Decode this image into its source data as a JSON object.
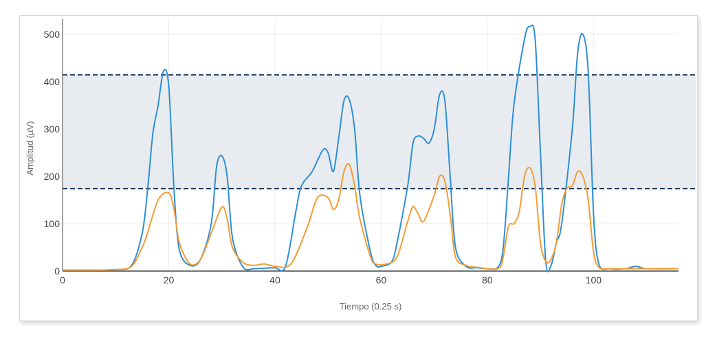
{
  "chart_data": {
    "type": "line",
    "title": "",
    "xlabel": "Tiempo (0.25 s)",
    "ylabel": "Amplitud (µV)",
    "xlim": [
      0,
      116
    ],
    "ylim": [
      0,
      520
    ],
    "x_ticks": [
      0,
      20,
      40,
      60,
      80,
      100
    ],
    "y_ticks": [
      0,
      100,
      200,
      300,
      400,
      500
    ],
    "grid": true,
    "legend": "none",
    "band": {
      "lower": 174,
      "upper": 414,
      "fill": "#e6eaee",
      "line_color": "#1b3a5c"
    },
    "series": [
      {
        "color": "#2d8fd5",
        "points": [
          [
            0,
            2
          ],
          [
            5,
            2
          ],
          [
            10,
            3
          ],
          [
            13,
            12
          ],
          [
            15,
            80
          ],
          [
            16,
            170
          ],
          [
            17,
            290
          ],
          [
            18,
            350
          ],
          [
            19,
            422
          ],
          [
            20,
            390
          ],
          [
            21,
            170
          ],
          [
            22,
            45
          ],
          [
            24,
            12
          ],
          [
            26,
            25
          ],
          [
            28,
            100
          ],
          [
            29,
            220
          ],
          [
            30,
            243
          ],
          [
            31,
            200
          ],
          [
            32,
            70
          ],
          [
            34,
            8
          ],
          [
            36,
            5
          ],
          [
            38,
            6
          ],
          [
            40,
            7
          ],
          [
            42,
            10
          ],
          [
            44,
            130
          ],
          [
            45,
            180
          ],
          [
            47,
            210
          ],
          [
            49,
            255
          ],
          [
            50,
            250
          ],
          [
            51,
            210
          ],
          [
            52,
            280
          ],
          [
            53,
            360
          ],
          [
            54,
            362
          ],
          [
            55,
            300
          ],
          [
            56,
            160
          ],
          [
            58,
            40
          ],
          [
            59,
            12
          ],
          [
            60,
            10
          ],
          [
            62,
            20
          ],
          [
            63,
            60
          ],
          [
            65,
            180
          ],
          [
            66,
            270
          ],
          [
            67,
            285
          ],
          [
            68,
            280
          ],
          [
            69,
            270
          ],
          [
            70,
            300
          ],
          [
            71,
            372
          ],
          [
            72,
            360
          ],
          [
            73,
            200
          ],
          [
            74,
            50
          ],
          [
            76,
            10
          ],
          [
            78,
            7
          ],
          [
            80,
            5
          ],
          [
            82,
            8
          ],
          [
            83,
            50
          ],
          [
            84,
            200
          ],
          [
            85,
            350
          ],
          [
            87,
            490
          ],
          [
            88,
            516
          ],
          [
            89,
            490
          ],
          [
            90,
            250
          ],
          [
            91,
            20
          ],
          [
            92,
            12
          ],
          [
            93,
            60
          ],
          [
            94,
            100
          ],
          [
            96,
            300
          ],
          [
            97,
            460
          ],
          [
            98,
            500
          ],
          [
            99,
            420
          ],
          [
            100,
            120
          ],
          [
            101,
            15
          ],
          [
            103,
            5
          ],
          [
            106,
            5
          ],
          [
            108,
            10
          ],
          [
            110,
            5
          ],
          [
            116,
            5
          ]
        ]
      },
      {
        "color": "#f39c35",
        "points": [
          [
            0,
            2
          ],
          [
            5,
            2
          ],
          [
            10,
            3
          ],
          [
            13,
            10
          ],
          [
            15,
            50
          ],
          [
            16,
            80
          ],
          [
            18,
            150
          ],
          [
            20,
            165
          ],
          [
            21,
            130
          ],
          [
            22,
            60
          ],
          [
            24,
            15
          ],
          [
            26,
            25
          ],
          [
            28,
            80
          ],
          [
            30,
            135
          ],
          [
            31,
            110
          ],
          [
            32,
            50
          ],
          [
            34,
            18
          ],
          [
            36,
            12
          ],
          [
            38,
            15
          ],
          [
            40,
            10
          ],
          [
            43,
            15
          ],
          [
            46,
            90
          ],
          [
            48,
            155
          ],
          [
            50,
            155
          ],
          [
            51,
            130
          ],
          [
            52,
            150
          ],
          [
            53,
            210
          ],
          [
            54,
            225
          ],
          [
            55,
            180
          ],
          [
            56,
            110
          ],
          [
            58,
            30
          ],
          [
            59,
            15
          ],
          [
            61,
            15
          ],
          [
            63,
            30
          ],
          [
            65,
            105
          ],
          [
            66,
            136
          ],
          [
            67,
            120
          ],
          [
            68,
            105
          ],
          [
            70,
            160
          ],
          [
            71,
            200
          ],
          [
            72,
            190
          ],
          [
            73,
            120
          ],
          [
            74,
            30
          ],
          [
            76,
            12
          ],
          [
            78,
            8
          ],
          [
            82,
            5
          ],
          [
            83,
            30
          ],
          [
            84,
            95
          ],
          [
            85,
            100
          ],
          [
            86,
            125
          ],
          [
            87,
            200
          ],
          [
            88,
            218
          ],
          [
            89,
            180
          ],
          [
            90,
            60
          ],
          [
            91,
            20
          ],
          [
            92,
            25
          ],
          [
            93,
            60
          ],
          [
            94,
            140
          ],
          [
            95,
            175
          ],
          [
            96,
            180
          ],
          [
            97,
            210
          ],
          [
            98,
            200
          ],
          [
            99,
            150
          ],
          [
            100,
            40
          ],
          [
            101,
            8
          ],
          [
            103,
            5
          ],
          [
            110,
            5
          ],
          [
            116,
            5
          ]
        ]
      }
    ]
  }
}
